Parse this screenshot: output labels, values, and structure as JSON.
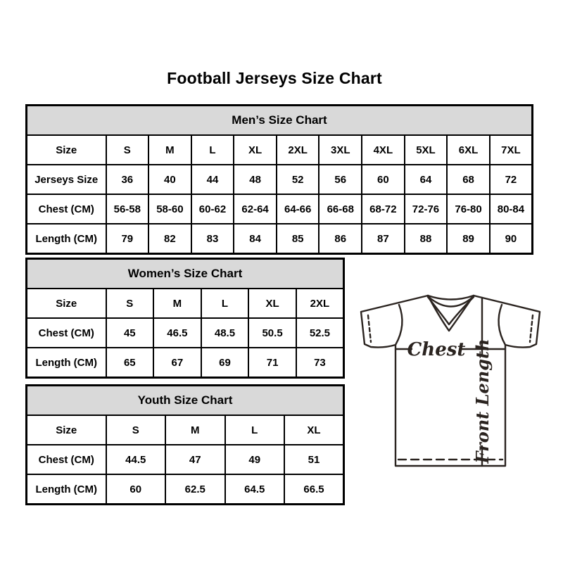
{
  "page": {
    "title": "Football Jerseys Size Chart"
  },
  "colors": {
    "table_header_bg": "#d9d9d9",
    "table_border": "#000000",
    "text": "#000000",
    "diagram_line": "#2b2420",
    "background": "#ffffff"
  },
  "tables": [
    {
      "id": "mens",
      "title": "Men’s Size Chart",
      "first_col_width": 113,
      "rows": [
        [
          "Size",
          "S",
          "M",
          "L",
          "XL",
          "2XL",
          "3XL",
          "4XL",
          "5XL",
          "6XL",
          "7XL"
        ],
        [
          "Jerseys Size",
          "36",
          "40",
          "44",
          "48",
          "52",
          "56",
          "60",
          "64",
          "68",
          "72"
        ],
        [
          "Chest (CM)",
          "56-58",
          "58-60",
          "60-62",
          "62-64",
          "64-66",
          "66-68",
          "68-72",
          "72-76",
          "76-80",
          "80-84"
        ],
        [
          "Length (CM)",
          "79",
          "82",
          "83",
          "84",
          "85",
          "86",
          "87",
          "88",
          "89",
          "90"
        ]
      ]
    },
    {
      "id": "womens",
      "title": "Women’s Size Chart",
      "first_col_width": 113,
      "rows": [
        [
          "Size",
          "S",
          "M",
          "L",
          "XL",
          "2XL"
        ],
        [
          "Chest (CM)",
          "45",
          "46.5",
          "48.5",
          "50.5",
          "52.5"
        ],
        [
          "Length (CM)",
          "65",
          "67",
          "69",
          "71",
          "73"
        ]
      ]
    },
    {
      "id": "youth",
      "title": "Youth Size Chart",
      "first_col_width": 113,
      "rows": [
        [
          "Size",
          "S",
          "M",
          "L",
          "XL"
        ],
        [
          "Chest (CM)",
          "44.5",
          "47",
          "49",
          "51"
        ],
        [
          "Length (CM)",
          "60",
          "62.5",
          "64.5",
          "66.5"
        ]
      ]
    }
  ],
  "diagram": {
    "chest_label": "Chest",
    "front_length_label": "Front Length"
  }
}
